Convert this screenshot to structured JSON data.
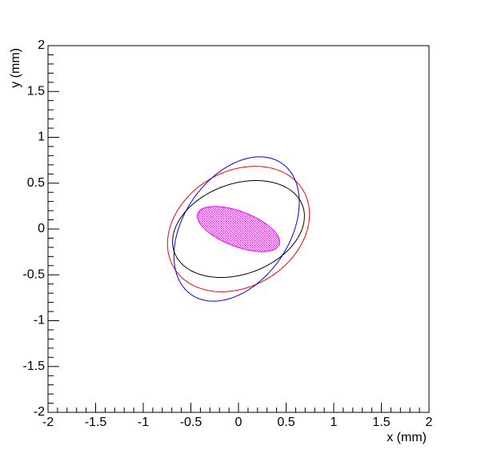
{
  "chart_data": {
    "type": "ellipse",
    "x_label": "x (mm)",
    "y_label": "y (mm)",
    "xlim": [
      -2,
      2
    ],
    "ylim": [
      -2,
      2
    ],
    "xticks": [
      -2,
      -1.5,
      -1,
      -0.5,
      0,
      0.5,
      1,
      1.5,
      2
    ],
    "yticks": [
      -2,
      -1.5,
      -1,
      -0.5,
      0,
      0.5,
      1,
      1.5,
      2
    ],
    "series": [
      {
        "color": "#ff0000",
        "cx": 0,
        "cy": 0,
        "rx": 0.8,
        "ry": 0.62,
        "angle": 35,
        "filled": false
      },
      {
        "color": "#0000ff",
        "cx": -0.02,
        "cy": 0,
        "rx": 0.86,
        "ry": 0.56,
        "angle": 58,
        "filled": false
      },
      {
        "color": "#000000",
        "cx": 0,
        "cy": 0,
        "rx": 0.72,
        "ry": 0.49,
        "angle": 22,
        "filled": false
      },
      {
        "color": "#ff00ff",
        "cx": 0,
        "cy": 0,
        "rx": 0.46,
        "ry": 0.19,
        "angle": -22,
        "filled": true
      }
    ]
  }
}
